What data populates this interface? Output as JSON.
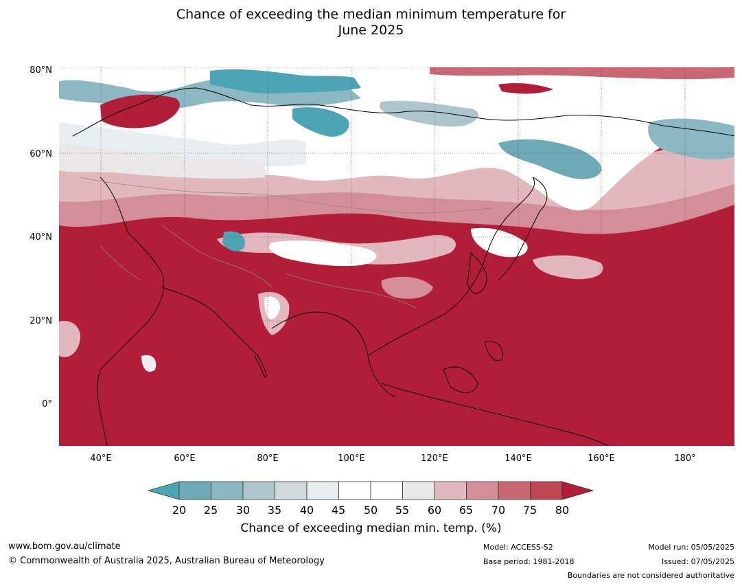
{
  "title": {
    "line1": "Chance of exceeding the median minimum temperature for",
    "line2": "June 2025"
  },
  "map": {
    "lat_labels": [
      "80°N",
      "60°N",
      "40°N",
      "20°N",
      "0°"
    ],
    "lon_labels": [
      "40°E",
      "60°E",
      "80°E",
      "100°E",
      "120°E",
      "140°E",
      "160°E",
      "180°"
    ],
    "extent": {
      "lon_min": 30,
      "lon_max": 192,
      "lat_min": -10,
      "lat_max": 80
    },
    "colors": {
      "below_20": "#4ba5b5",
      "c20_25": "#6ea9b6",
      "c25_30": "#8bb8c3",
      "c30_35": "#adc6cb",
      "c35_40": "#d1d9da",
      "c40_45": "#e8eef0",
      "c45_55": "#ffffff",
      "c55_60": "#eae7e8",
      "c60_65": "#e0b8bd",
      "c65_70": "#d48e97",
      "c70_75": "#c86872",
      "c75_80": "#bf4752",
      "above_80": "#b21e38"
    }
  },
  "colorbar": {
    "ticks": [
      "20",
      "25",
      "30",
      "35",
      "40",
      "45",
      "50",
      "55",
      "60",
      "65",
      "70",
      "75",
      "80"
    ],
    "label": "Chance of exceeding median min. temp. (%)"
  },
  "footer": {
    "url": "www.bom.gov.au/climate",
    "copyright": "© Commonwealth of Australia 2025, Australian Bureau of Meteorology",
    "model": "Model: ACCESS-S2",
    "base_period": "Base period: 1981-2018",
    "model_run": "Model run: 05/05/2025",
    "issued": "Issued: 07/05/2025",
    "boundaries": "Boundaries are not considered authoritative"
  }
}
